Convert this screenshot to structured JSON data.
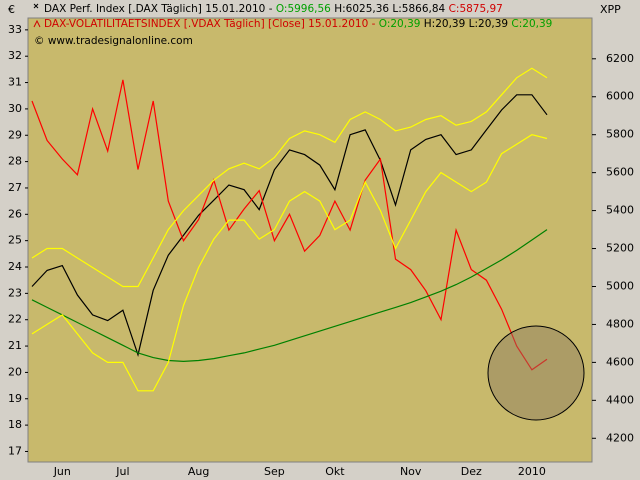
{
  "chart_data": {
    "type": "line",
    "left_unit": "€",
    "right_unit": "XPP",
    "copyright": "© www.tradesignalonline.com",
    "categories": [
      null,
      null,
      "Jun",
      null,
      null,
      null,
      "Jul",
      null,
      null,
      null,
      null,
      "Aug",
      null,
      null,
      null,
      null,
      "Sep",
      null,
      null,
      null,
      "Okt",
      null,
      null,
      null,
      null,
      "Nov",
      null,
      null,
      null,
      "Dez",
      null,
      null,
      null,
      "2010",
      null
    ],
    "ylim": [
      16.6,
      33.45
    ],
    "yticks": [
      17,
      18,
      19,
      20,
      21,
      22,
      23,
      24,
      25,
      26,
      27,
      28,
      29,
      30,
      31,
      32,
      33
    ],
    "y2lim": [
      4075,
      6415
    ],
    "y2ticks": [
      4200,
      4400,
      4600,
      4800,
      5000,
      5200,
      5400,
      5600,
      5800,
      6000,
      6200
    ],
    "series": [
      {
        "name": "DAX Perf. Index [.DAX Täglich] 15.01.2010 -",
        "ohlc": [
          "O:5996,56",
          "H:6025,36",
          "L:5866,84",
          "C:5875,97"
        ],
        "axis": "y2",
        "color": "#000000",
        "values": [
          5000,
          5085,
          5110,
          4955,
          4850,
          4820,
          4875,
          4640,
          4980,
          5165,
          5270,
          5375,
          5455,
          5535,
          5510,
          5405,
          5615,
          5720,
          5695,
          5640,
          5510,
          5800,
          5825,
          5665,
          5430,
          5720,
          5775,
          5800,
          5695,
          5720,
          5825,
          5930,
          6010,
          6010,
          5905
        ]
      },
      {
        "name": "DAX-VOLATILITAETSINDEX [.VDAX Täglich] [Close] 15.01.2010 -",
        "ohlc": [
          "O:20,39",
          "H:20,39",
          "L:20,39",
          "C:20,39"
        ],
        "color": "#ff0000",
        "values": [
          30.3,
          28.8,
          28.1,
          27.5,
          30.0,
          28.4,
          31.1,
          27.7,
          30.3,
          26.5,
          25.0,
          25.8,
          27.3,
          25.4,
          26.2,
          26.9,
          25.0,
          26.0,
          24.6,
          25.2,
          26.5,
          25.4,
          27.3,
          28.1,
          24.3,
          23.9,
          23.1,
          22.0,
          25.4,
          23.9,
          23.5,
          22.4,
          21.0,
          20.1,
          20.5
        ]
      },
      {
        "axis": "y2",
        "color": "#008000",
        "values": [
          4930,
          4890,
          4850,
          4810,
          4770,
          4730,
          4690,
          4650,
          4625,
          4610,
          4605,
          4610,
          4620,
          4635,
          4650,
          4670,
          4690,
          4715,
          4740,
          4765,
          4790,
          4815,
          4840,
          4865,
          4890,
          4915,
          4945,
          4975,
          5010,
          5050,
          5095,
          5140,
          5190,
          5245,
          5300
        ]
      },
      {
        "axis": "y2",
        "color": "#ffff00",
        "values": [
          5150,
          5200,
          5200,
          5150,
          5100,
          5050,
          5000,
          5000,
          5150,
          5300,
          5400,
          5480,
          5560,
          5620,
          5650,
          5620,
          5680,
          5780,
          5820,
          5800,
          5760,
          5880,
          5920,
          5880,
          5820,
          5840,
          5880,
          5900,
          5850,
          5870,
          5920,
          6010,
          6100,
          6150,
          6100
        ]
      },
      {
        "axis": "y2",
        "color": "#ffff00",
        "values": [
          4750,
          4800,
          4850,
          4750,
          4650,
          4600,
          4600,
          4450,
          4450,
          4600,
          4900,
          5100,
          5250,
          5350,
          5350,
          5250,
          5300,
          5450,
          5500,
          5450,
          5300,
          5350,
          5550,
          5400,
          5200,
          5350,
          5500,
          5600,
          5550,
          5500,
          5550,
          5700,
          5750,
          5800,
          5780
        ]
      }
    ]
  }
}
